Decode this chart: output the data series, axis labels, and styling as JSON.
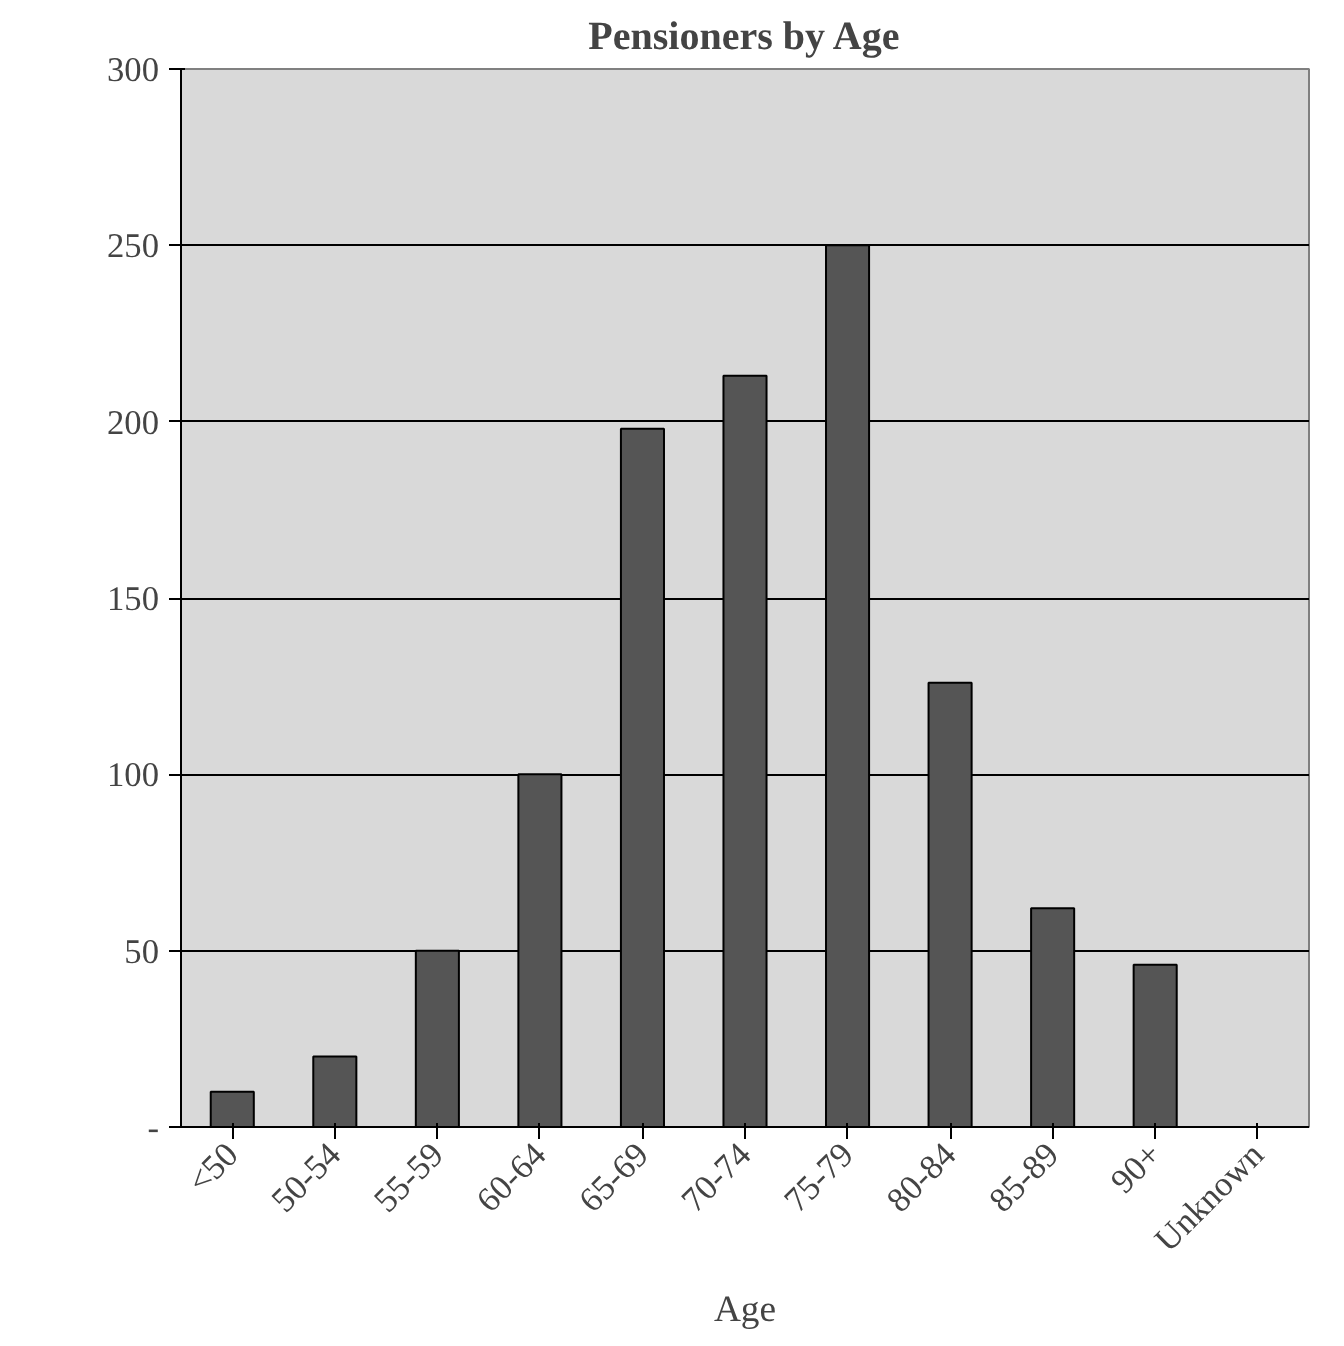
{
  "chart_data": {
    "type": "bar",
    "title": "Pensioners by Age",
    "xlabel": "Age",
    "categories": [
      "<50",
      "50-54",
      "55-59",
      "60-64",
      "65-69",
      "70-74",
      "75-79",
      "80-84",
      "85-89",
      "90+",
      "Unknown"
    ],
    "values": [
      10,
      20,
      50,
      100,
      198,
      213,
      250,
      126,
      62,
      46,
      null
    ],
    "color": "#555555",
    "ylim": [
      0,
      300
    ],
    "yticks": [
      {
        "value": 0,
        "label": "-"
      },
      50,
      100,
      150,
      200,
      250,
      300
    ],
    "grid": "y"
  }
}
